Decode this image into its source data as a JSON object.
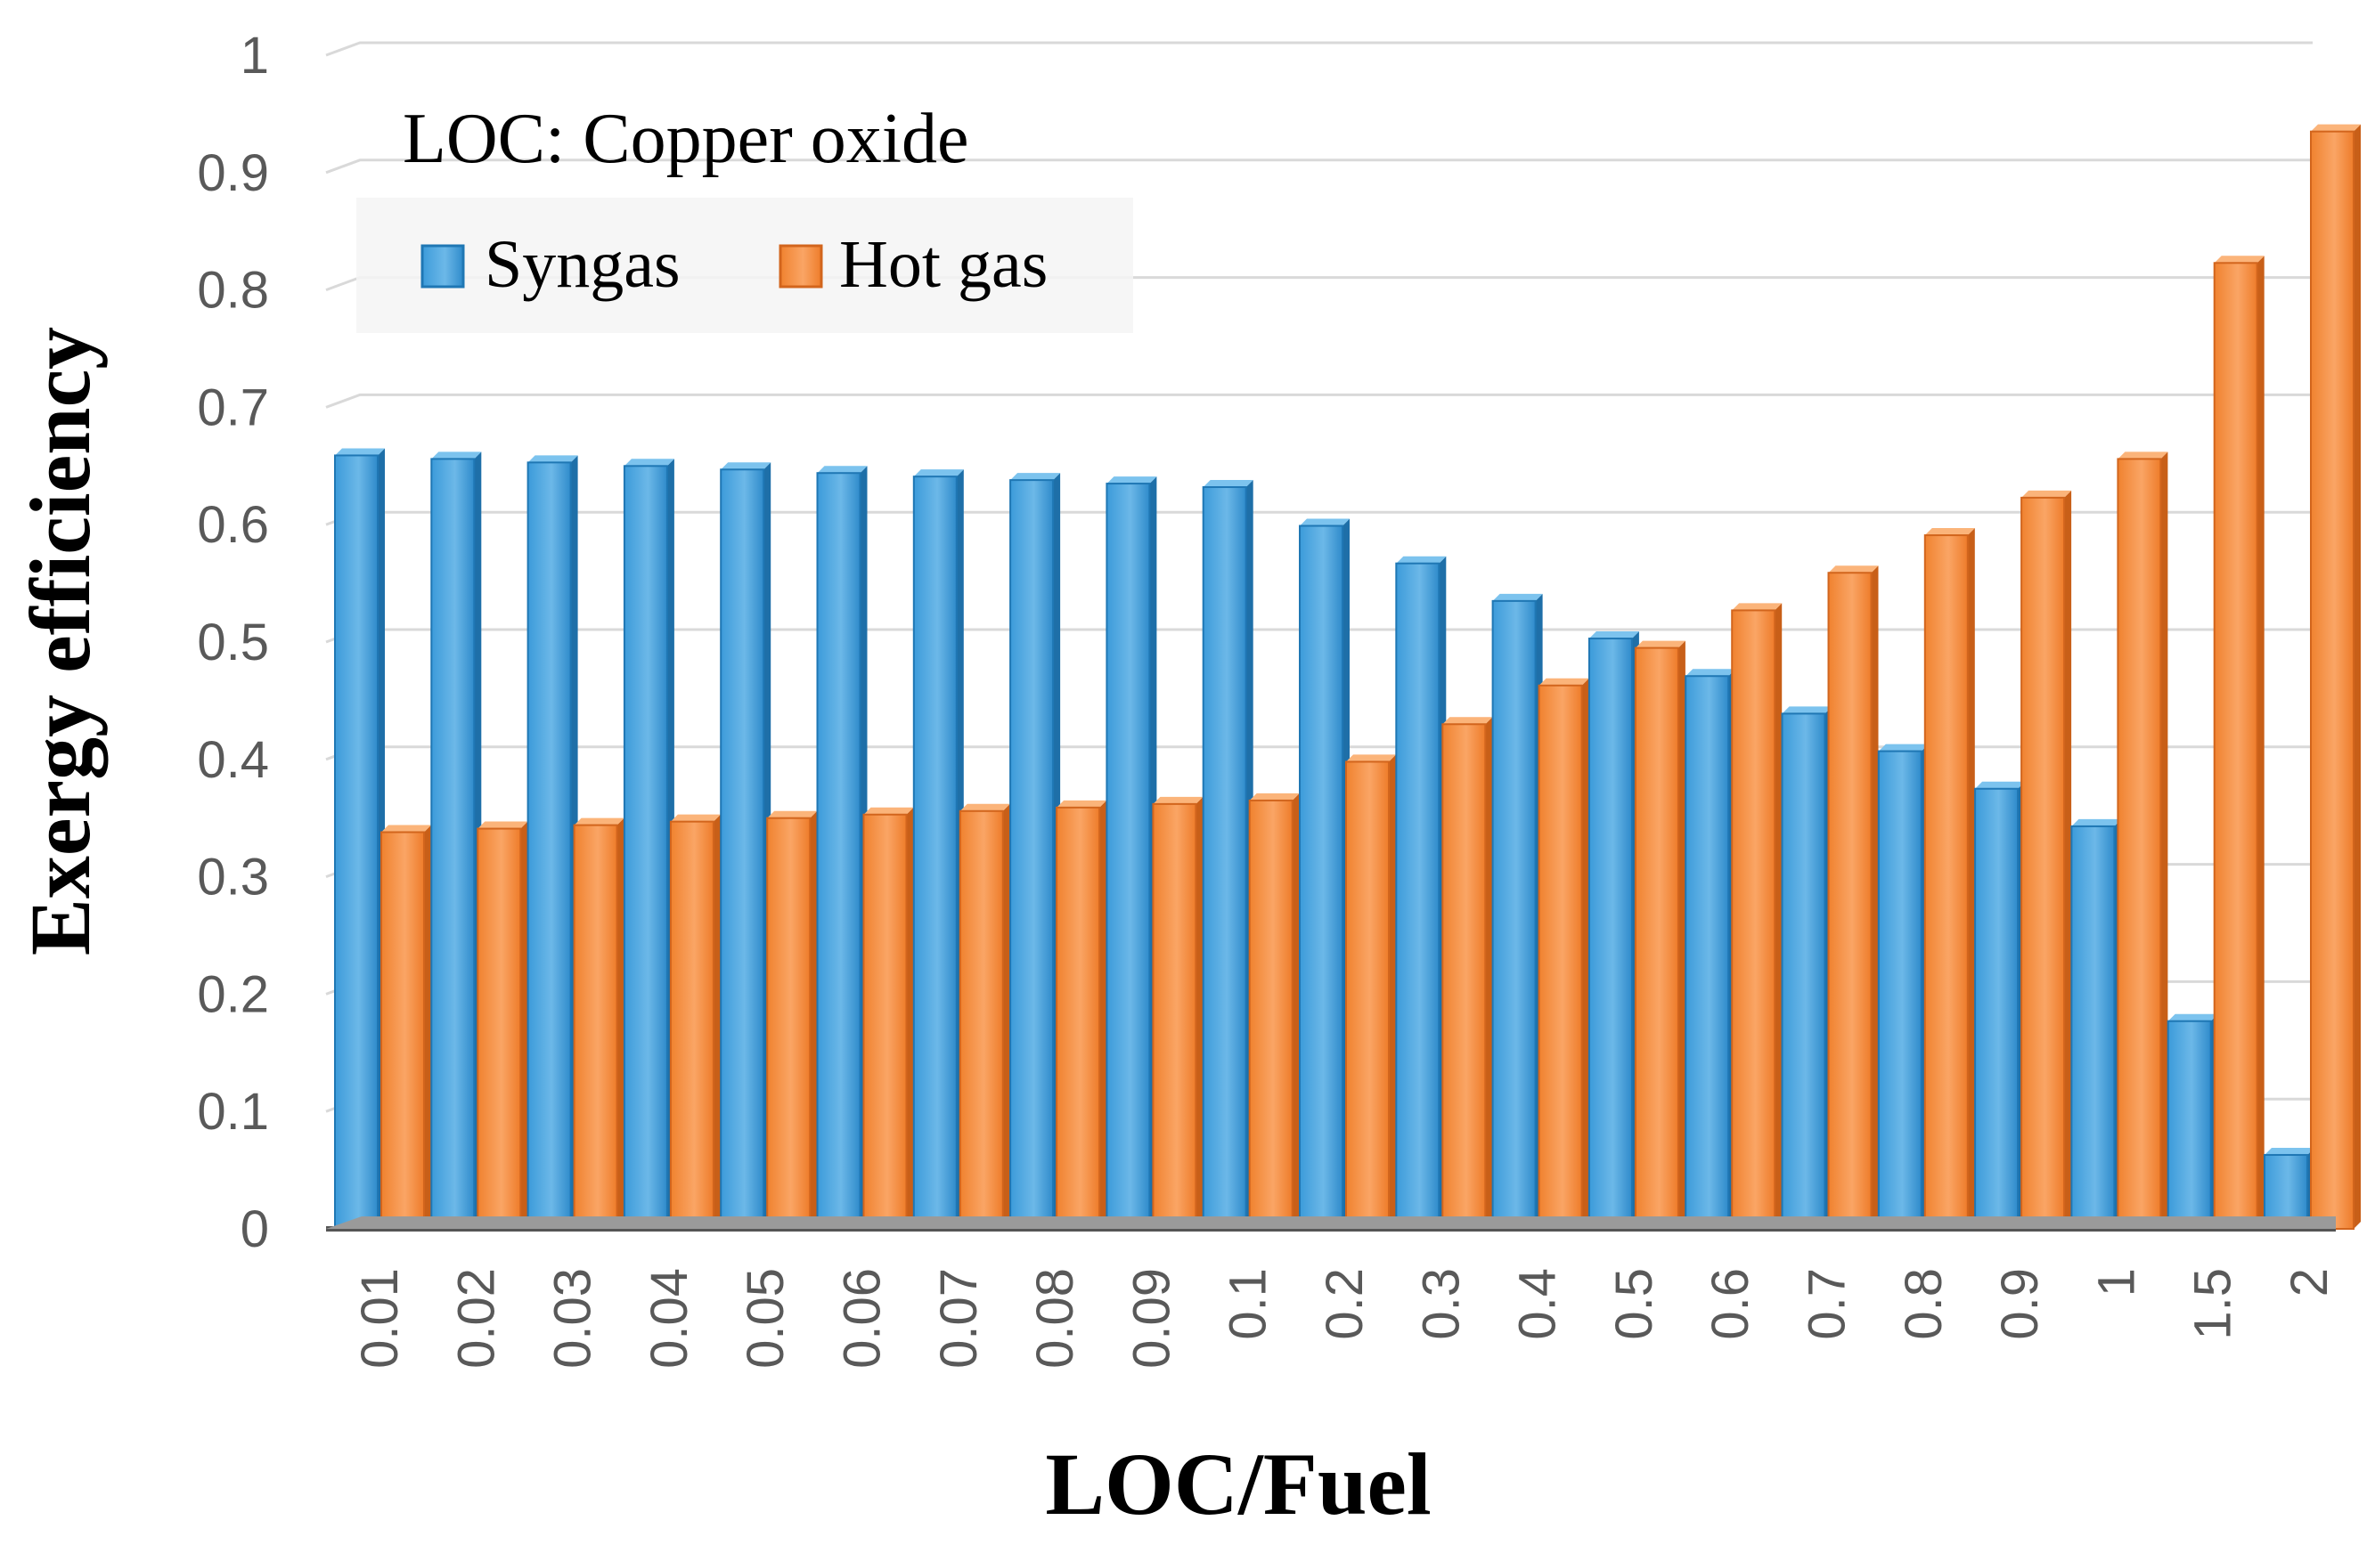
{
  "chart_data": {
    "type": "bar",
    "title": "LOC: Copper oxide",
    "xlabel": "LOC/Fuel",
    "ylabel": "Exergy efficiency",
    "ylim": [
      0,
      1
    ],
    "yticks": [
      "0",
      "0.1",
      "0.2",
      "0.3",
      "0.4",
      "0.5",
      "0.6",
      "0.7",
      "0.8",
      "0.9",
      "1"
    ],
    "categories": [
      "0.01",
      "0.02",
      "0.03",
      "0.04",
      "0.05",
      "0.06",
      "0.07",
      "0.08",
      "0.09",
      "0.1",
      "0.2",
      "0.3",
      "0.4",
      "0.5",
      "0.6",
      "0.7",
      "0.8",
      "0.9",
      "1",
      "1.5",
      "2"
    ],
    "series": [
      {
        "name": "Syngas",
        "color": "#2E8FD0",
        "values": [
          0.659,
          0.656,
          0.653,
          0.65,
          0.647,
          0.644,
          0.641,
          0.638,
          0.635,
          0.632,
          0.599,
          0.567,
          0.535,
          0.503,
          0.471,
          0.439,
          0.407,
          0.375,
          0.343,
          0.177,
          0.063
        ]
      },
      {
        "name": "Hot gas",
        "color": "#F07F2E",
        "values": [
          0.338,
          0.341,
          0.344,
          0.347,
          0.35,
          0.353,
          0.356,
          0.359,
          0.362,
          0.365,
          0.398,
          0.43,
          0.463,
          0.495,
          0.527,
          0.559,
          0.591,
          0.623,
          0.656,
          0.823,
          0.935
        ]
      }
    ],
    "legend": "top-left",
    "grid": true
  }
}
